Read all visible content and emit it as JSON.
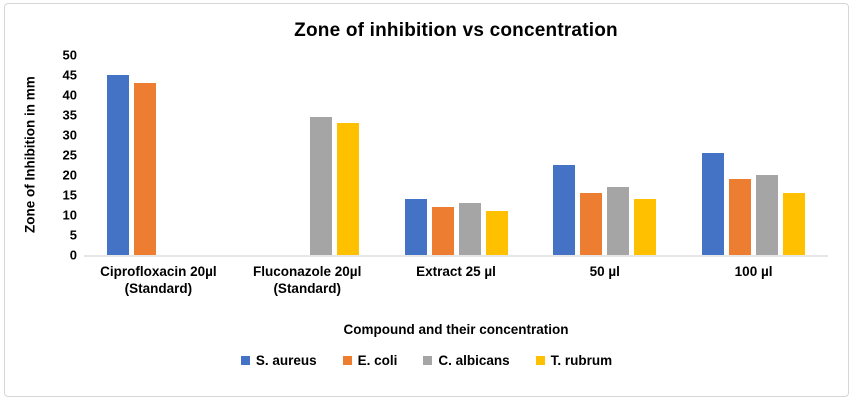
{
  "chart_data": {
    "type": "bar",
    "title": "Zone of inhibition vs concentration",
    "xlabel": "Compound and their concentration",
    "ylabel": "Zone of Inhibition in mm",
    "ylim": [
      0,
      50
    ],
    "y_ticks": [
      0,
      5,
      10,
      15,
      20,
      25,
      30,
      35,
      40,
      45,
      50
    ],
    "grid": false,
    "legend_position": "bottom",
    "categories": [
      "Ciprofloxacin 20µl\n(Standard)",
      "Fluconazole 20µl\n(Standard)",
      "Extract 25 µl",
      "50 µl",
      "100 µl"
    ],
    "series": [
      {
        "name": "S. aureus",
        "color": "#4472C4",
        "values": [
          45,
          0,
          14,
          22.5,
          25.5
        ]
      },
      {
        "name": "E. coli",
        "color": "#ED7D31",
        "values": [
          43,
          0,
          12,
          15.5,
          19
        ]
      },
      {
        "name": "C. albicans",
        "color": "#A5A5A5",
        "values": [
          0,
          34.5,
          13,
          17,
          20
        ]
      },
      {
        "name": "T. rubrum",
        "color": "#FFC000",
        "values": [
          0,
          33,
          11,
          14,
          15.5
        ]
      }
    ]
  }
}
